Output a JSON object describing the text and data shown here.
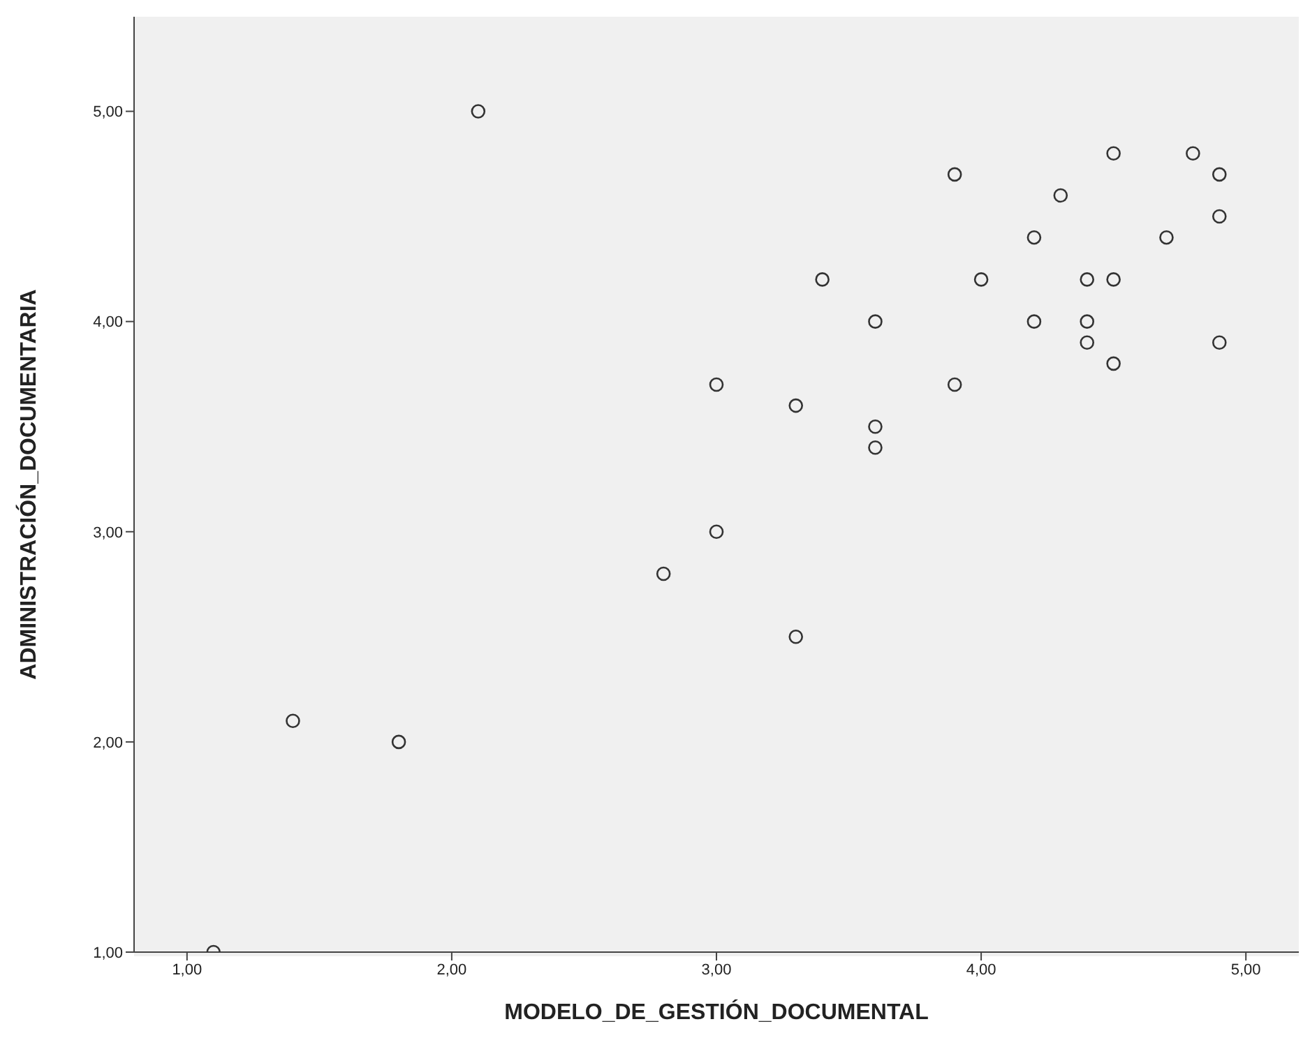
{
  "chart_data": {
    "type": "scatter",
    "xlabel": "MODELO_DE_GESTIÓN_DOCUMENTAL",
    "ylabel": "ADMINISTRACIÓN_DOCUMENTARIA",
    "marker": "circle",
    "x": [
      1.1,
      1.4,
      1.8,
      2.1,
      2.8,
      3.0,
      3.0,
      3.3,
      3.3,
      3.4,
      3.6,
      3.6,
      3.6,
      3.9,
      3.9,
      4.0,
      4.2,
      4.2,
      4.3,
      4.4,
      4.4,
      4.4,
      4.5,
      4.5,
      4.5,
      4.7,
      4.8,
      4.9,
      4.9,
      4.9
    ],
    "series": [
      {
        "color": "#333333",
        "values": [
          1.0,
          2.1,
          2.0,
          5.0,
          2.8,
          3.7,
          3.0,
          3.6,
          2.5,
          4.2,
          4.0,
          3.5,
          3.4,
          4.7,
          3.7,
          4.2,
          4.4,
          4.0,
          4.6,
          4.2,
          4.0,
          3.9,
          4.8,
          4.2,
          3.8,
          4.4,
          4.8,
          4.7,
          4.5,
          3.9
        ]
      }
    ],
    "xlim": [
      0.8,
      5.2
    ],
    "ylim": [
      1,
      5.45
    ],
    "xticks": [
      {
        "value": 1,
        "label": "1,00"
      },
      {
        "value": 2,
        "label": "2,00"
      },
      {
        "value": 3,
        "label": "3,00"
      },
      {
        "value": 4,
        "label": "4,00"
      },
      {
        "value": 5,
        "label": "5,00"
      }
    ],
    "yticks": [
      {
        "value": 1,
        "label": "1,00"
      },
      {
        "value": 2,
        "label": "2,00"
      },
      {
        "value": 3,
        "label": "3,00"
      },
      {
        "value": 4,
        "label": "4,00"
      },
      {
        "value": 5,
        "label": "5,00"
      }
    ]
  }
}
